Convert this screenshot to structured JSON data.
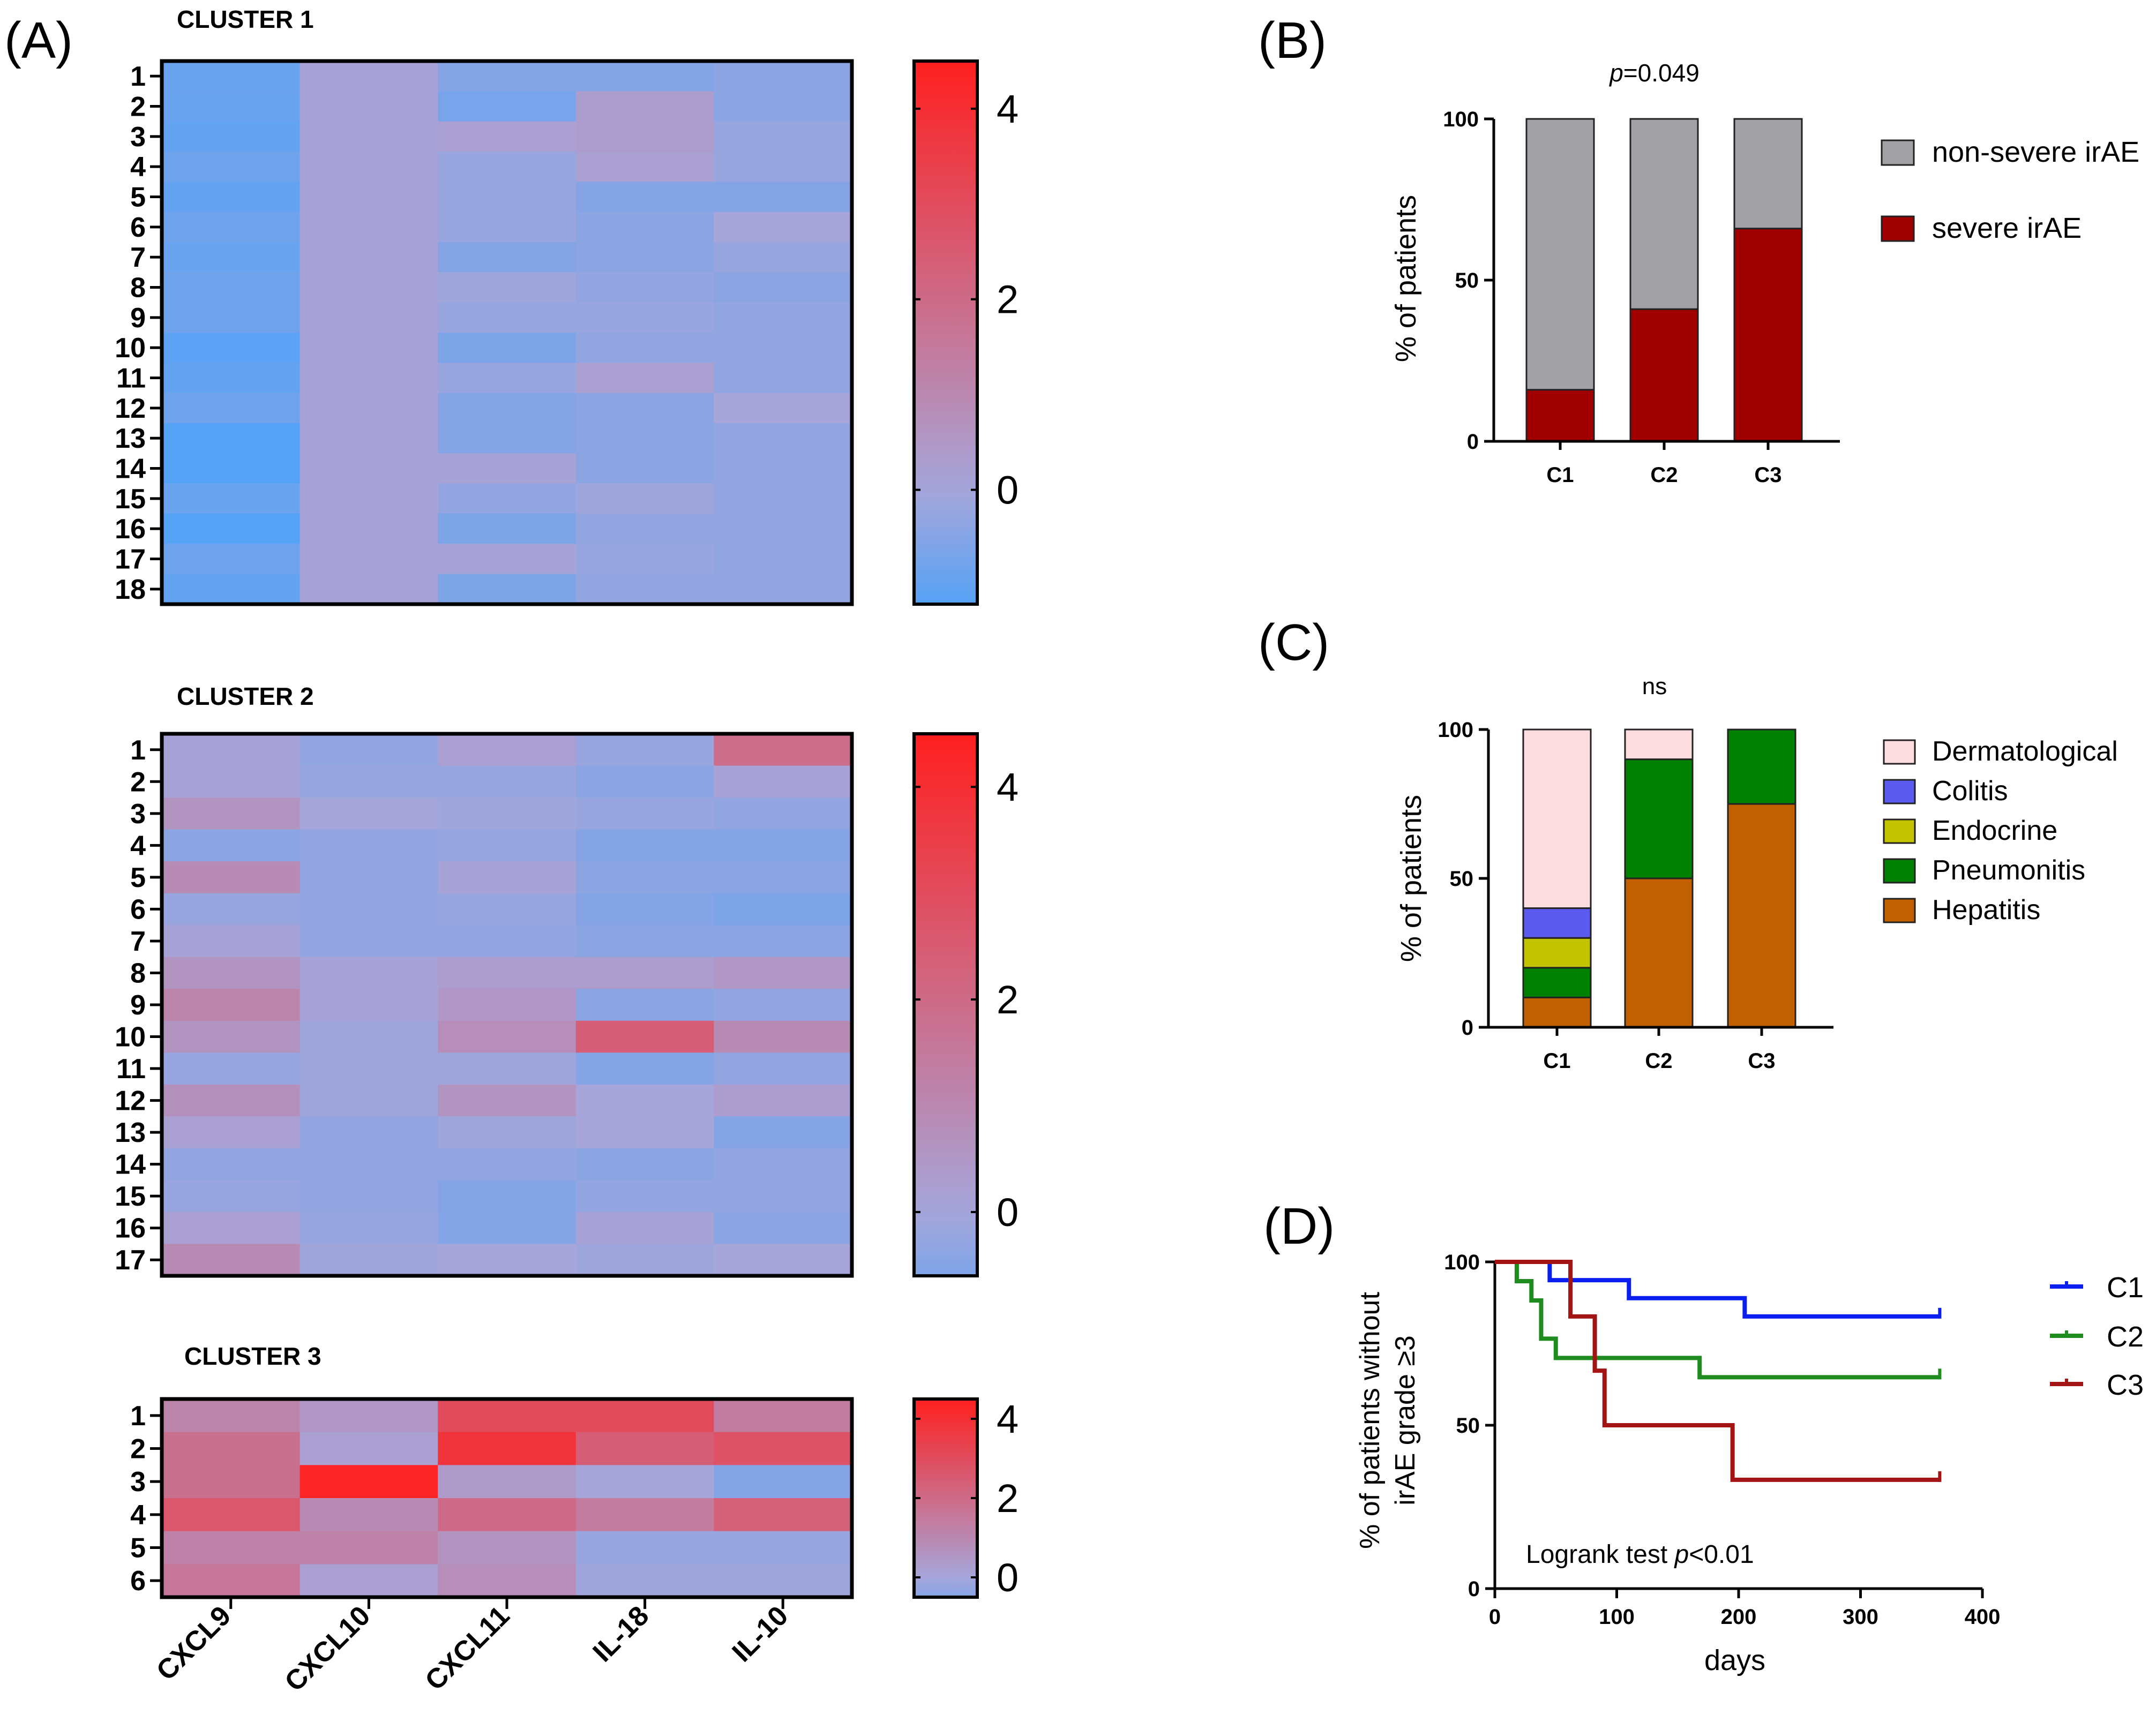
{
  "panel_labels": {
    "a": "(A)",
    "b": "(B)",
    "c": "(C)",
    "d": "(D)"
  },
  "colors": {
    "heat_low": "#56A2F6",
    "heat_mid": "#A6A6DA",
    "heat_high": "#FF1F1F",
    "non_severe": "#A2A1A6",
    "severe": "#A10000",
    "dermatological": "#FDDDE0",
    "colitis": "#5B5BF0",
    "endocrine": "#C3C300",
    "pneumonitis": "#008000",
    "hepatitis": "#C06000",
    "km_c1": "#0A1EF0",
    "km_c2": "#1E8C1E",
    "km_c3": "#A31515"
  },
  "chart_data": [
    {
      "type": "heatmap",
      "panel": "A",
      "title": "CLUSTER 1",
      "columns": [
        "CXCL9",
        "CXCL10",
        "CXCL11",
        "IL-18",
        "IL-10"
      ],
      "rows": [
        "1",
        "2",
        "3",
        "4",
        "5",
        "6",
        "7",
        "8",
        "9",
        "10",
        "11",
        "12",
        "13",
        "14",
        "15",
        "16",
        "17",
        "18"
      ],
      "values": [
        [
          -0.9,
          0.1,
          -0.5,
          -0.5,
          -0.4
        ],
        [
          -0.9,
          0.1,
          -0.7,
          0.3,
          -0.4
        ],
        [
          -1.0,
          0.1,
          0.2,
          0.3,
          -0.2
        ],
        [
          -0.8,
          0.1,
          -0.2,
          0.2,
          -0.2
        ],
        [
          -1.0,
          0.1,
          -0.2,
          -0.5,
          -0.5
        ],
        [
          -0.8,
          0.1,
          -0.2,
          -0.4,
          0.0
        ],
        [
          -0.9,
          0.1,
          -0.5,
          -0.4,
          -0.2
        ],
        [
          -0.8,
          0.1,
          -0.1,
          -0.3,
          -0.4
        ],
        [
          -0.8,
          0.1,
          -0.2,
          -0.2,
          -0.3
        ],
        [
          -1.1,
          0.1,
          -0.6,
          -0.3,
          -0.3
        ],
        [
          -1.0,
          0.1,
          -0.2,
          0.2,
          -0.3
        ],
        [
          -0.8,
          0.1,
          -0.5,
          -0.4,
          0.0
        ],
        [
          -1.2,
          0.1,
          -0.5,
          -0.4,
          -0.3
        ],
        [
          -1.2,
          0.1,
          0.1,
          -0.4,
          -0.3
        ],
        [
          -0.9,
          0.1,
          -0.3,
          -0.1,
          -0.3
        ],
        [
          -1.2,
          0.1,
          -0.6,
          -0.3,
          -0.3
        ],
        [
          -0.8,
          0.1,
          0.1,
          -0.2,
          -0.3
        ],
        [
          -1.0,
          0.1,
          -0.6,
          -0.3,
          -0.3
        ]
      ],
      "colorbar": {
        "min": -1.2,
        "max": 4.5,
        "ticks": [
          0,
          2,
          4
        ],
        "tick_labels": [
          "0",
          "2",
          "4"
        ]
      }
    },
    {
      "type": "heatmap",
      "panel": "A",
      "title": "CLUSTER 2",
      "columns": [
        "CXCL9",
        "CXCL10",
        "CXCL11",
        "IL-18",
        "IL-10"
      ],
      "rows": [
        "1",
        "2",
        "3",
        "4",
        "5",
        "6",
        "7",
        "8",
        "9",
        "10",
        "11",
        "12",
        "13",
        "14",
        "15",
        "16",
        "17"
      ],
      "values": [
        [
          0.1,
          -0.3,
          0.2,
          -0.2,
          1.9
        ],
        [
          0.1,
          -0.2,
          -0.2,
          -0.4,
          0.1
        ],
        [
          0.6,
          0.0,
          -0.1,
          -0.2,
          -0.3
        ],
        [
          -0.4,
          -0.3,
          -0.2,
          -0.5,
          -0.5
        ],
        [
          0.9,
          -0.3,
          0.1,
          -0.4,
          -0.4
        ],
        [
          -0.2,
          -0.3,
          -0.2,
          -0.5,
          -0.6
        ],
        [
          0.1,
          -0.3,
          -0.3,
          -0.4,
          -0.4
        ],
        [
          0.6,
          0.1,
          0.3,
          0.3,
          0.5
        ],
        [
          1.1,
          0.1,
          0.5,
          -0.4,
          -0.3
        ],
        [
          0.6,
          -0.1,
          0.8,
          2.4,
          0.9
        ],
        [
          -0.2,
          -0.1,
          -0.1,
          -0.5,
          -0.3
        ],
        [
          0.7,
          -0.1,
          0.6,
          0.0,
          0.3
        ],
        [
          0.2,
          -0.3,
          -0.1,
          0.0,
          -0.5
        ],
        [
          -0.3,
          -0.3,
          -0.3,
          -0.4,
          -0.3
        ],
        [
          -0.2,
          -0.3,
          -0.5,
          -0.3,
          -0.3
        ],
        [
          0.2,
          -0.2,
          -0.5,
          0.1,
          -0.4
        ],
        [
          0.9,
          -0.1,
          0.0,
          -0.1,
          0.0
        ]
      ],
      "colorbar": {
        "min": -0.6,
        "max": 4.5,
        "ticks": [
          0,
          2,
          4
        ],
        "tick_labels": [
          "0",
          "2",
          "4"
        ]
      }
    },
    {
      "type": "heatmap",
      "panel": "A",
      "title": "CLUSTER 3",
      "columns": [
        "CXCL9",
        "CXCL10",
        "CXCL11",
        "IL-18",
        "IL-10"
      ],
      "rows": [
        "1",
        "2",
        "3",
        "4",
        "5",
        "6"
      ],
      "values": [
        [
          1.1,
          0.5,
          3.0,
          3.0,
          1.4
        ],
        [
          1.8,
          0.2,
          3.8,
          2.4,
          2.8
        ],
        [
          1.8,
          4.3,
          0.4,
          0.0,
          -0.5
        ],
        [
          2.6,
          0.9,
          2.0,
          1.4,
          2.3
        ],
        [
          1.2,
          1.2,
          0.6,
          -0.2,
          -0.2
        ],
        [
          1.6,
          0.2,
          0.8,
          -0.1,
          -0.1
        ]
      ],
      "colorbar": {
        "min": -0.5,
        "max": 4.5,
        "ticks": [
          0,
          2,
          4
        ],
        "tick_labels": [
          "0",
          "2",
          "4"
        ]
      }
    },
    {
      "type": "bar",
      "panel": "B",
      "stacked": true,
      "title_prefix": "p",
      "title": "=0.049",
      "categories": [
        "C1",
        "C2",
        "C3"
      ],
      "series": [
        {
          "name": "severe irAE",
          "values": [
            16,
            41,
            66
          ]
        },
        {
          "name": "non-severe irAE",
          "values": [
            84,
            59,
            34
          ]
        }
      ],
      "xlabel": "",
      "ylabel": "% of patients",
      "ylim": [
        0,
        100
      ],
      "yticks": [
        0,
        50,
        100
      ],
      "legend": [
        "non-severe irAE",
        "severe irAE"
      ],
      "legend_position": "right"
    },
    {
      "type": "bar",
      "panel": "C",
      "stacked": true,
      "title": "ns",
      "categories": [
        "C1",
        "C2",
        "C3"
      ],
      "series": [
        {
          "name": "Hepatitis",
          "values": [
            10,
            50,
            75
          ]
        },
        {
          "name": "Pneumonitis",
          "values": [
            10,
            40,
            25
          ]
        },
        {
          "name": "Endocrine",
          "values": [
            10,
            0,
            0
          ]
        },
        {
          "name": "Colitis",
          "values": [
            10,
            0,
            0
          ]
        },
        {
          "name": "Dermatological",
          "values": [
            60,
            10,
            0
          ]
        }
      ],
      "xlabel": "",
      "ylabel": "% of patients",
      "ylim": [
        0,
        100
      ],
      "yticks": [
        0,
        50,
        100
      ],
      "legend": [
        "Dermatological",
        "Colitis",
        "Endocrine",
        "Pneumonitis",
        "Hepatitis"
      ],
      "legend_position": "right"
    },
    {
      "type": "line",
      "subtype": "kaplan-meier",
      "panel": "D",
      "xlabel": "days",
      "ylabel_line1": "% of patients without",
      "ylabel_line2": "irAE grade ≥3",
      "xlim": [
        0,
        400
      ],
      "ylim": [
        0,
        100
      ],
      "xticks": [
        0,
        100,
        200,
        300,
        400
      ],
      "yticks": [
        0,
        50,
        100
      ],
      "annotation_text": "Logrank test ",
      "annotation_p": "p",
      "annotation_value": "<0.01",
      "series": [
        {
          "name": "C1",
          "x": [
            0,
            45,
            45,
            110,
            110,
            205,
            205,
            365
          ],
          "y": [
            100,
            100,
            94.4,
            94.4,
            88.9,
            88.9,
            83.3,
            83.3
          ]
        },
        {
          "name": "C2",
          "x": [
            0,
            18,
            18,
            30,
            30,
            38,
            38,
            50,
            50,
            168,
            168,
            365
          ],
          "y": [
            100,
            100,
            94.1,
            94.1,
            88.2,
            88.2,
            76.5,
            76.5,
            70.6,
            70.6,
            64.7,
            64.7
          ]
        },
        {
          "name": "C3",
          "x": [
            0,
            62,
            62,
            82,
            82,
            90,
            90,
            195,
            195,
            365
          ],
          "y": [
            100,
            100,
            83.3,
            83.3,
            66.7,
            66.7,
            50.0,
            50.0,
            33.3,
            33.3
          ]
        }
      ],
      "legend": [
        "C1",
        "C2",
        "C3"
      ],
      "legend_position": "right"
    }
  ]
}
